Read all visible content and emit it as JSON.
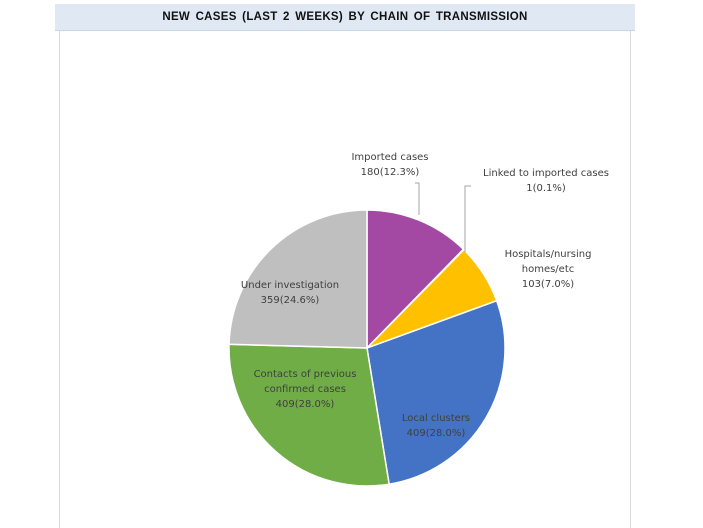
{
  "chart_data": {
    "type": "pie",
    "title": "NEW CASES (LAST 2 WEEKS) BY CHAIN OF TRANSMISSION",
    "slices": [
      {
        "label": "Imported cases",
        "value": 180,
        "value_label": "180(12.3%)",
        "color": "#a349a4"
      },
      {
        "label": "Linked to imported cases",
        "value": 1,
        "value_label": "1(0.1%)",
        "color": "#ed7d31"
      },
      {
        "label": "Hospitals/nursing homes/etc",
        "value": 103,
        "value_label": "103(7.0%)",
        "color": "#ffc000"
      },
      {
        "label": "Local clusters",
        "value": 409,
        "value_label": "409(28.0%)",
        "color": "#4472c4"
      },
      {
        "label": "Contacts of previous confirmed cases",
        "value": 409,
        "value_label": "409(28.0%)",
        "color": "#70ad47"
      },
      {
        "label": "Under investigation",
        "value": 359,
        "value_label": "359(24.6%)",
        "color": "#bfbfbf"
      }
    ]
  }
}
